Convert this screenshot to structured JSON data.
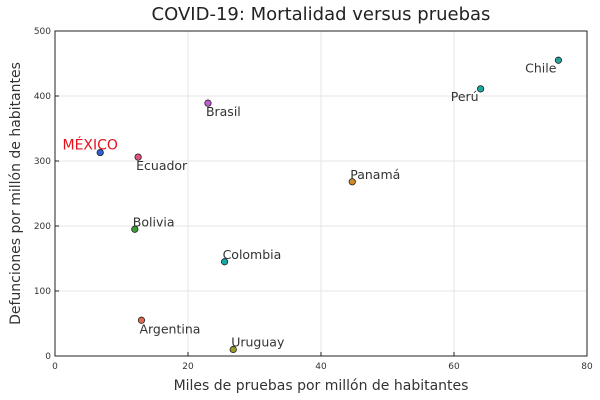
{
  "chart_data": {
    "type": "scatter",
    "title": "COVID-19: Mortalidad versus pruebas",
    "xlabel": "Miles de pruebas por millón de habitantes",
    "ylabel": "Defunciones por millón de habitantes",
    "xlim": [
      0,
      80
    ],
    "ylim": [
      0,
      500
    ],
    "xticks": [
      0,
      20,
      40,
      60,
      80
    ],
    "yticks": [
      0,
      100,
      200,
      300,
      400,
      500
    ],
    "grid": true,
    "legend": "none",
    "points": [
      {
        "label": "Chile",
        "x": 75.7,
        "y": 455,
        "color": "#2aa198",
        "label_pos": "left-below",
        "highlight": false
      },
      {
        "label": "Perú",
        "x": 64.0,
        "y": 411,
        "color": "#1aa9a0",
        "label_pos": "left-below",
        "highlight": false
      },
      {
        "label": "Brasil",
        "x": 23.0,
        "y": 389,
        "color": "#c25bd6",
        "label_pos": "right-below",
        "highlight": false
      },
      {
        "label": "MÉXICO",
        "x": 6.8,
        "y": 313,
        "color": "#2f5fd6",
        "label_pos": "left-above",
        "highlight": true
      },
      {
        "label": "Ecuador",
        "x": 12.5,
        "y": 306,
        "color": "#e0527a",
        "label_pos": "right-below",
        "highlight": false
      },
      {
        "label": "Panamá",
        "x": 44.7,
        "y": 268,
        "color": "#d08a2a",
        "label_pos": "right-above",
        "highlight": false
      },
      {
        "label": "Bolivia",
        "x": 12.0,
        "y": 195,
        "color": "#3f9a3a",
        "label_pos": "right-above",
        "highlight": false
      },
      {
        "label": "Colombia",
        "x": 25.5,
        "y": 145,
        "color": "#18a7a6",
        "label_pos": "right-above",
        "highlight": false
      },
      {
        "label": "Argentina",
        "x": 13.0,
        "y": 55,
        "color": "#e0674f",
        "label_pos": "right-below",
        "highlight": false
      },
      {
        "label": "Uruguay",
        "x": 26.8,
        "y": 10,
        "color": "#9a9a2a",
        "label_pos": "right-above",
        "highlight": false
      }
    ]
  }
}
